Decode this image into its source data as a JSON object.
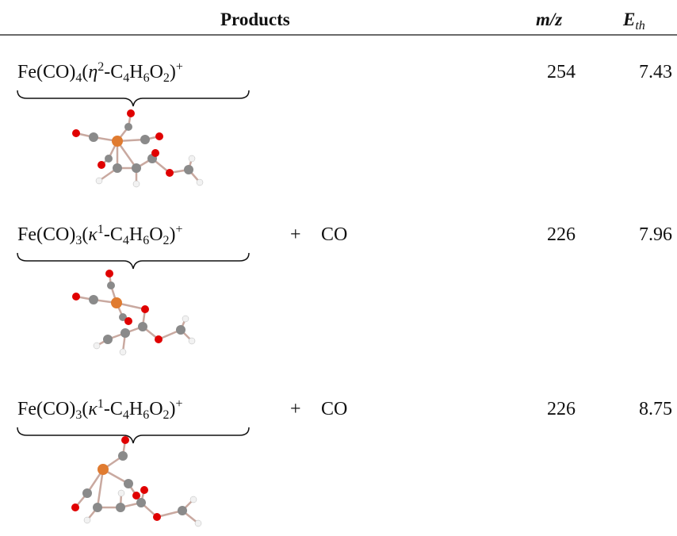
{
  "header": {
    "products": "Products",
    "mz": "m/z",
    "eth": [
      "E",
      "th"
    ]
  },
  "rows": [
    {
      "formula": [
        "Fe(CO)",
        "4",
        "(",
        "η",
        "2",
        "-C",
        "4",
        "H",
        "6",
        "O",
        "2",
        ")",
        "+"
      ],
      "plus": null,
      "co": null,
      "mz": 254,
      "eth": 7.43
    },
    {
      "formula": [
        "Fe(CO)",
        "3",
        "(",
        "κ",
        "1",
        "-C",
        "4",
        "H",
        "6",
        "O",
        "2",
        ")",
        "+"
      ],
      "plus": "+",
      "co": "CO",
      "mz": 226,
      "eth": 7.96
    },
    {
      "formula": [
        "Fe(CO)",
        "3",
        "(",
        "κ",
        "1",
        "-C",
        "4",
        "H",
        "6",
        "O",
        "2",
        ")",
        "+"
      ],
      "plus": "+",
      "co": "CO",
      "mz": 226,
      "eth": 8.75
    }
  ]
}
